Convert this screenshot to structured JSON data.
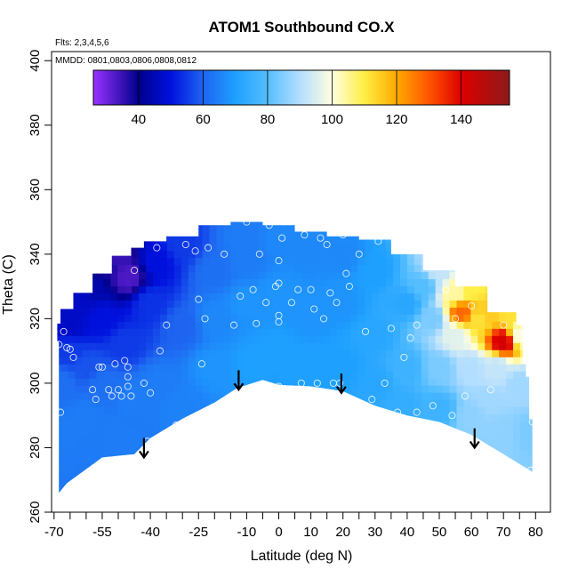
{
  "chart_data": {
    "type": "heatmap",
    "title": "ATOM1 Southbound CO.X",
    "annotations": {
      "flights": "Flts: 2,3,4,5,6",
      "dates": "MMDD: 0801,0803,0806,0808,0812"
    },
    "xlabel": "Latitude (deg N)",
    "ylabel": "Theta (C)",
    "xlim": [
      -70,
      82
    ],
    "ylim": [
      260,
      402
    ],
    "x_ticks": [
      -70,
      -55,
      -40,
      -25,
      -10,
      0,
      10,
      20,
      30,
      40,
      50,
      60,
      70,
      80
    ],
    "x_minor_ticks": [
      -65,
      -60,
      -50,
      -45,
      -35,
      -30,
      -20,
      -15,
      -5,
      5,
      15,
      25,
      35,
      45,
      55,
      65,
      75
    ],
    "y_ticks": [
      260,
      280,
      300,
      320,
      340,
      360,
      380,
      400
    ],
    "colorbar": {
      "min": 26,
      "max": 155,
      "ticks": [
        40,
        60,
        80,
        100,
        120,
        140
      ],
      "stops": [
        {
          "v": 26,
          "color": "#9933ff"
        },
        {
          "v": 40,
          "color": "#00008b"
        },
        {
          "v": 50,
          "color": "#0011dd"
        },
        {
          "v": 60,
          "color": "#1e64f0"
        },
        {
          "v": 70,
          "color": "#1ea0ff"
        },
        {
          "v": 80,
          "color": "#55beff"
        },
        {
          "v": 90,
          "color": "#b4deff"
        },
        {
          "v": 100,
          "color": "#fffee0"
        },
        {
          "v": 110,
          "color": "#ffee44"
        },
        {
          "v": 120,
          "color": "#ffaa00"
        },
        {
          "v": 130,
          "color": "#ff5500"
        },
        {
          "v": 140,
          "color": "#dd0000"
        },
        {
          "v": 155,
          "color": "#8b1a1a"
        }
      ]
    },
    "domain_bottom": [
      [
        -68.5,
        266
      ],
      [
        -66,
        269
      ],
      [
        -55,
        277
      ],
      [
        -45,
        278
      ],
      [
        -40,
        283
      ],
      [
        -30,
        289
      ],
      [
        -20,
        294
      ],
      [
        -13,
        298.5
      ],
      [
        -5,
        301
      ],
      [
        0,
        299.5
      ],
      [
        10,
        299
      ],
      [
        20,
        297.5
      ],
      [
        30,
        293
      ],
      [
        40,
        290
      ],
      [
        50,
        288
      ],
      [
        60,
        284
      ],
      [
        70,
        278
      ],
      [
        79,
        272.5
      ]
    ],
    "domain_top": [
      [
        79,
        289
      ],
      [
        78,
        302
      ],
      [
        77,
        306
      ],
      [
        76,
        318
      ],
      [
        74,
        322
      ],
      [
        65,
        330
      ],
      [
        55,
        335
      ],
      [
        45,
        340
      ],
      [
        35,
        344.5
      ],
      [
        25,
        345.5
      ],
      [
        15,
        347
      ],
      [
        5,
        349
      ],
      [
        -5,
        350
      ],
      [
        -15,
        349
      ],
      [
        -25,
        345.5
      ],
      [
        -35,
        344
      ],
      [
        -42,
        342
      ],
      [
        -46,
        339.5
      ],
      [
        -52,
        334
      ],
      [
        -58,
        328
      ],
      [
        -64,
        323
      ],
      [
        -68,
        318.5
      ],
      [
        -69,
        313
      ],
      [
        -68.5,
        295
      ],
      [
        -68.5,
        266
      ]
    ],
    "field_points": [
      {
        "lat": -68,
        "theta": 300,
        "value": 62
      },
      {
        "lat": -68,
        "theta": 285,
        "value": 64
      },
      {
        "lat": -65,
        "theta": 318,
        "value": 47
      },
      {
        "lat": -62,
        "theta": 325,
        "value": 47
      },
      {
        "lat": -58,
        "theta": 330,
        "value": 44
      },
      {
        "lat": -55,
        "theta": 336,
        "value": 38
      },
      {
        "lat": -50,
        "theta": 340,
        "value": 35
      },
      {
        "lat": -47,
        "theta": 333,
        "value": 33
      },
      {
        "lat": -55,
        "theta": 320,
        "value": 50
      },
      {
        "lat": -48,
        "theta": 312,
        "value": 55
      },
      {
        "lat": -55,
        "theta": 300,
        "value": 62
      },
      {
        "lat": -60,
        "theta": 290,
        "value": 64
      },
      {
        "lat": -50,
        "theta": 283,
        "value": 64
      },
      {
        "lat": -40,
        "theta": 325,
        "value": 54
      },
      {
        "lat": -38,
        "theta": 338,
        "value": 50
      },
      {
        "lat": -30,
        "theta": 343,
        "value": 55
      },
      {
        "lat": -30,
        "theta": 318,
        "value": 60
      },
      {
        "lat": -38,
        "theta": 300,
        "value": 64
      },
      {
        "lat": -30,
        "theta": 293,
        "value": 65
      },
      {
        "lat": -20,
        "theta": 335,
        "value": 62
      },
      {
        "lat": -20,
        "theta": 320,
        "value": 66
      },
      {
        "lat": -20,
        "theta": 305,
        "value": 68
      },
      {
        "lat": -10,
        "theta": 345,
        "value": 64
      },
      {
        "lat": -10,
        "theta": 325,
        "value": 68
      },
      {
        "lat": -8,
        "theta": 306,
        "value": 70
      },
      {
        "lat": 0,
        "theta": 345,
        "value": 66
      },
      {
        "lat": 0,
        "theta": 328,
        "value": 68
      },
      {
        "lat": 0,
        "theta": 310,
        "value": 70
      },
      {
        "lat": 10,
        "theta": 340,
        "value": 66
      },
      {
        "lat": 10,
        "theta": 320,
        "value": 68
      },
      {
        "lat": 10,
        "theta": 305,
        "value": 70
      },
      {
        "lat": 20,
        "theta": 340,
        "value": 66
      },
      {
        "lat": 20,
        "theta": 325,
        "value": 68
      },
      {
        "lat": 20,
        "theta": 305,
        "value": 70
      },
      {
        "lat": 30,
        "theta": 335,
        "value": 70
      },
      {
        "lat": 30,
        "theta": 315,
        "value": 72
      },
      {
        "lat": 30,
        "theta": 300,
        "value": 72
      },
      {
        "lat": 40,
        "theta": 325,
        "value": 72
      },
      {
        "lat": 40,
        "theta": 305,
        "value": 76
      },
      {
        "lat": 38,
        "theta": 293,
        "value": 74
      },
      {
        "lat": 45,
        "theta": 330,
        "value": 80
      },
      {
        "lat": 50,
        "theta": 335,
        "value": 92
      },
      {
        "lat": 48,
        "theta": 320,
        "value": 84
      },
      {
        "lat": 50,
        "theta": 305,
        "value": 84
      },
      {
        "lat": 50,
        "theta": 292,
        "value": 76
      },
      {
        "lat": 55,
        "theta": 328,
        "value": 104
      },
      {
        "lat": 57,
        "theta": 322,
        "value": 128
      },
      {
        "lat": 55,
        "theta": 315,
        "value": 96
      },
      {
        "lat": 60,
        "theta": 330,
        "value": 110
      },
      {
        "lat": 62,
        "theta": 320,
        "value": 112
      },
      {
        "lat": 60,
        "theta": 305,
        "value": 90
      },
      {
        "lat": 65,
        "theta": 322,
        "value": 115
      },
      {
        "lat": 70,
        "theta": 313,
        "value": 142
      },
      {
        "lat": 72,
        "theta": 322,
        "value": 112
      },
      {
        "lat": 68,
        "theta": 305,
        "value": 92
      },
      {
        "lat": 75,
        "theta": 315,
        "value": 100
      },
      {
        "lat": 75,
        "theta": 300,
        "value": 88
      },
      {
        "lat": 60,
        "theta": 290,
        "value": 86
      },
      {
        "lat": 70,
        "theta": 285,
        "value": 86
      },
      {
        "lat": 78,
        "theta": 285,
        "value": 84
      },
      {
        "lat": 65,
        "theta": 295,
        "value": 88
      },
      {
        "lat": -65,
        "theta": 310,
        "value": 55
      },
      {
        "lat": -60,
        "theta": 305,
        "value": 58
      },
      {
        "lat": -45,
        "theta": 295,
        "value": 64
      },
      {
        "lat": -10,
        "theta": 338,
        "value": 64
      }
    ],
    "markers": [
      [
        -68.5,
        312
      ],
      [
        -68,
        291
      ],
      [
        -67,
        316
      ],
      [
        -66,
        311
      ],
      [
        -65,
        310.5
      ],
      [
        -64,
        308
      ],
      [
        -58,
        298
      ],
      [
        -57,
        295
      ],
      [
        -56,
        305
      ],
      [
        -55,
        305
      ],
      [
        -53,
        298
      ],
      [
        -52,
        296
      ],
      [
        -51,
        306
      ],
      [
        -50,
        298
      ],
      [
        -49,
        296
      ],
      [
        -48,
        307
      ],
      [
        -47,
        302
      ],
      [
        -47,
        305
      ],
      [
        -47,
        299
      ],
      [
        -46,
        296
      ],
      [
        -45,
        335
      ],
      [
        -41,
        282
      ],
      [
        -42,
        300
      ],
      [
        -40,
        297
      ],
      [
        -38,
        342
      ],
      [
        -37,
        310
      ],
      [
        -35,
        318
      ],
      [
        -32,
        287
      ],
      [
        -30,
        278
      ],
      [
        -29,
        343
      ],
      [
        -26,
        341
      ],
      [
        -25,
        326
      ],
      [
        -24,
        306
      ],
      [
        -23,
        320
      ],
      [
        -22,
        342
      ],
      [
        -17,
        340
      ],
      [
        -14,
        318
      ],
      [
        -12,
        327
      ],
      [
        -10,
        350
      ],
      [
        -8,
        329
      ],
      [
        -7,
        318.5
      ],
      [
        -6,
        340
      ],
      [
        -4,
        325
      ],
      [
        -3,
        349
      ],
      [
        -1,
        330
      ],
      [
        0,
        338
      ],
      [
        0,
        331
      ],
      [
        0,
        321
      ],
      [
        0,
        319
      ],
      [
        0,
        299
      ],
      [
        0,
        298.5
      ],
      [
        1,
        345
      ],
      [
        4,
        325
      ],
      [
        6,
        329
      ],
      [
        7,
        300
      ],
      [
        8,
        346
      ],
      [
        10,
        329
      ],
      [
        11,
        323
      ],
      [
        12,
        300
      ],
      [
        13,
        345
      ],
      [
        14,
        320
      ],
      [
        15,
        343
      ],
      [
        16,
        328
      ],
      [
        17,
        300
      ],
      [
        18,
        325
      ],
      [
        19,
        300
      ],
      [
        20,
        346
      ],
      [
        21,
        334
      ],
      [
        22,
        330
      ],
      [
        25,
        340
      ],
      [
        27,
        316
      ],
      [
        29,
        295
      ],
      [
        30,
        290
      ],
      [
        31,
        344
      ],
      [
        33,
        300
      ],
      [
        35,
        317
      ],
      [
        37,
        291
      ],
      [
        39,
        308
      ],
      [
        41,
        314
      ],
      [
        43,
        318
      ],
      [
        43,
        291
      ],
      [
        48,
        293
      ],
      [
        52,
        329
      ],
      [
        54,
        290
      ],
      [
        55,
        320
      ],
      [
        56,
        331
      ],
      [
        58,
        296
      ],
      [
        60,
        324
      ],
      [
        66,
        298
      ],
      [
        70,
        318
      ],
      [
        79,
        288
      ],
      [
        78.5,
        273
      ]
    ],
    "arrows": [
      {
        "lat": -42,
        "from": 283,
        "to": 277
      },
      {
        "lat": -12.5,
        "from": 304,
        "to": 298
      },
      {
        "lat": 19.5,
        "from": 303,
        "to": 297
      },
      {
        "lat": 61,
        "from": 286,
        "to": 280
      }
    ]
  }
}
